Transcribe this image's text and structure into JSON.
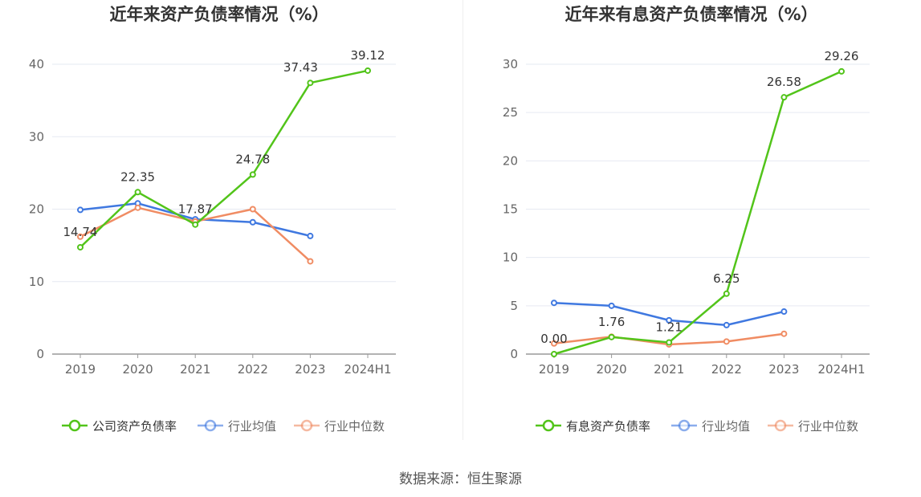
{
  "source": "数据来源：恒生聚源",
  "colors": {
    "company": "#52c41a",
    "industry_avg": "#3f78e0",
    "industry_median": "#f08c63",
    "axis": "#999999",
    "grid": "#e6e9f2",
    "text": "#666666",
    "label": "#333333"
  },
  "chart_data": [
    {
      "type": "line",
      "title": "近年来资产负债率情况（%）",
      "categories": [
        "2019",
        "2020",
        "2021",
        "2022",
        "2023",
        "2024H1"
      ],
      "ylim": [
        0,
        40
      ],
      "yticks": [
        "0",
        "10",
        "20",
        "30",
        "40"
      ],
      "grid": true,
      "legend_position": "bottom",
      "series": [
        {
          "name": "公司资产负债率",
          "values": [
            14.74,
            22.35,
            17.87,
            24.78,
            37.43,
            39.12
          ],
          "labels": [
            "14.74",
            "22.35",
            "17.87",
            "24.78",
            "37.43",
            "39.12"
          ]
        },
        {
          "name": "行业均值",
          "values": [
            19.9,
            20.8,
            18.6,
            18.2,
            16.3,
            null
          ]
        },
        {
          "name": "行业中位数",
          "values": [
            16.2,
            20.2,
            18.3,
            20.0,
            12.8,
            null
          ]
        }
      ]
    },
    {
      "type": "line",
      "title": "近年来有息资产负债率情况（%）",
      "categories": [
        "2019",
        "2020",
        "2021",
        "2022",
        "2023",
        "2024H1"
      ],
      "ylim": [
        0,
        30
      ],
      "yticks": [
        "0",
        "5",
        "10",
        "15",
        "20",
        "25",
        "30"
      ],
      "grid": true,
      "legend_position": "bottom",
      "series": [
        {
          "name": "有息资产负债率",
          "values": [
            0.0,
            1.76,
            1.21,
            6.25,
            26.58,
            29.26
          ],
          "labels": [
            "0.00",
            "1.76",
            "1.21",
            "6.25",
            "26.58",
            "29.26"
          ]
        },
        {
          "name": "行业均值",
          "values": [
            5.3,
            5.0,
            3.5,
            3.0,
            4.4,
            null
          ]
        },
        {
          "name": "行业中位数",
          "values": [
            1.1,
            1.8,
            1.0,
            1.3,
            2.1,
            null
          ]
        }
      ]
    }
  ]
}
